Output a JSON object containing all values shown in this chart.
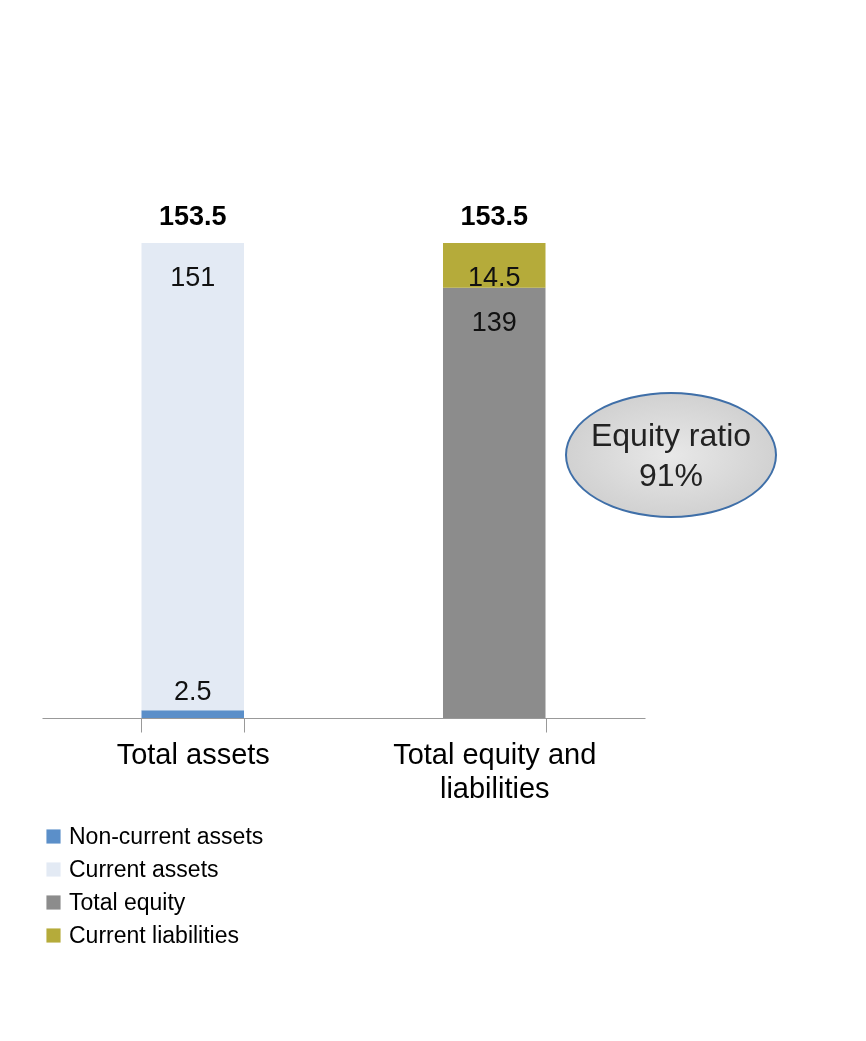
{
  "chart_data": {
    "type": "bar",
    "stacked": true,
    "categories": [
      "Total assets",
      "Total equity and liabilities"
    ],
    "series": [
      {
        "name": "Non-current assets",
        "color": "#5b8fc9",
        "values": [
          2.5,
          null
        ]
      },
      {
        "name": "Current assets",
        "color": "#e3eaf4",
        "values": [
          151,
          null
        ]
      },
      {
        "name": "Total equity",
        "color": "#8c8c8c",
        "values": [
          null,
          139
        ]
      },
      {
        "name": "Current liabilities",
        "color": "#b5ab3a",
        "values": [
          null,
          14.5
        ]
      }
    ],
    "data_labels": true,
    "totals": [
      "153.5",
      "153.5"
    ],
    "legend": "bottom left",
    "grid": false,
    "annotations": [
      "Equity ratio 91%"
    ]
  }
}
